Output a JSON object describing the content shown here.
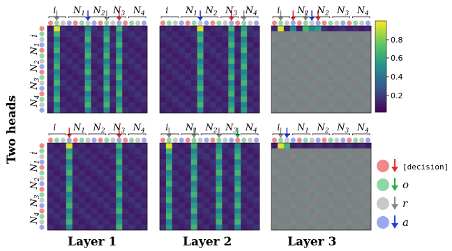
{
  "chart_data": {
    "type": "heatmap",
    "row_title": "Two heads",
    "layers": [
      "Layer 1",
      "Layer 2",
      "Layer 3"
    ],
    "token_groups": [
      {
        "label": "i",
        "sub": ""
      },
      {
        "label": "N",
        "sub": "1"
      },
      {
        "label": "N",
        "sub": "2"
      },
      {
        "label": "N",
        "sub": "3"
      },
      {
        "label": "N",
        "sub": "4"
      }
    ],
    "colorbar": {
      "ticks": [
        "0.8",
        "0.6",
        "0.4",
        "0.2"
      ],
      "min": 0.0,
      "max": 0.95
    },
    "legend": [
      {
        "symbol": "[decision]",
        "color": "#f08a8a",
        "arrow": "#e03030"
      },
      {
        "symbol": "o",
        "color": "#8ed8a8",
        "arrow": "#2aa84a"
      },
      {
        "symbol": "r",
        "color": "#c8c8c8",
        "arrow": "#888888"
      },
      {
        "symbol": "a",
        "color": "#9aa8ee",
        "arrow": "#2040e0"
      }
    ],
    "panels": [
      {
        "name": "head1-layer1",
        "bright_cols": [
          1,
          6,
          9,
          11
        ],
        "shade": 0
      },
      {
        "name": "head1-layer2",
        "bright_cols": [
          6,
          11,
          13
        ],
        "shade": 0
      },
      {
        "name": "head1-layer3",
        "bright_cols": [
          1,
          3,
          5,
          6,
          7
        ],
        "shade": 1
      },
      {
        "name": "head2-layer1",
        "bright_cols": [
          3,
          11
        ],
        "shade": 0
      },
      {
        "name": "head2-layer2",
        "bright_cols": [
          1,
          5,
          9,
          12
        ],
        "shade": 0
      },
      {
        "name": "head2-layer3",
        "bright_cols": [
          1,
          2
        ],
        "shade": 1
      }
    ]
  }
}
